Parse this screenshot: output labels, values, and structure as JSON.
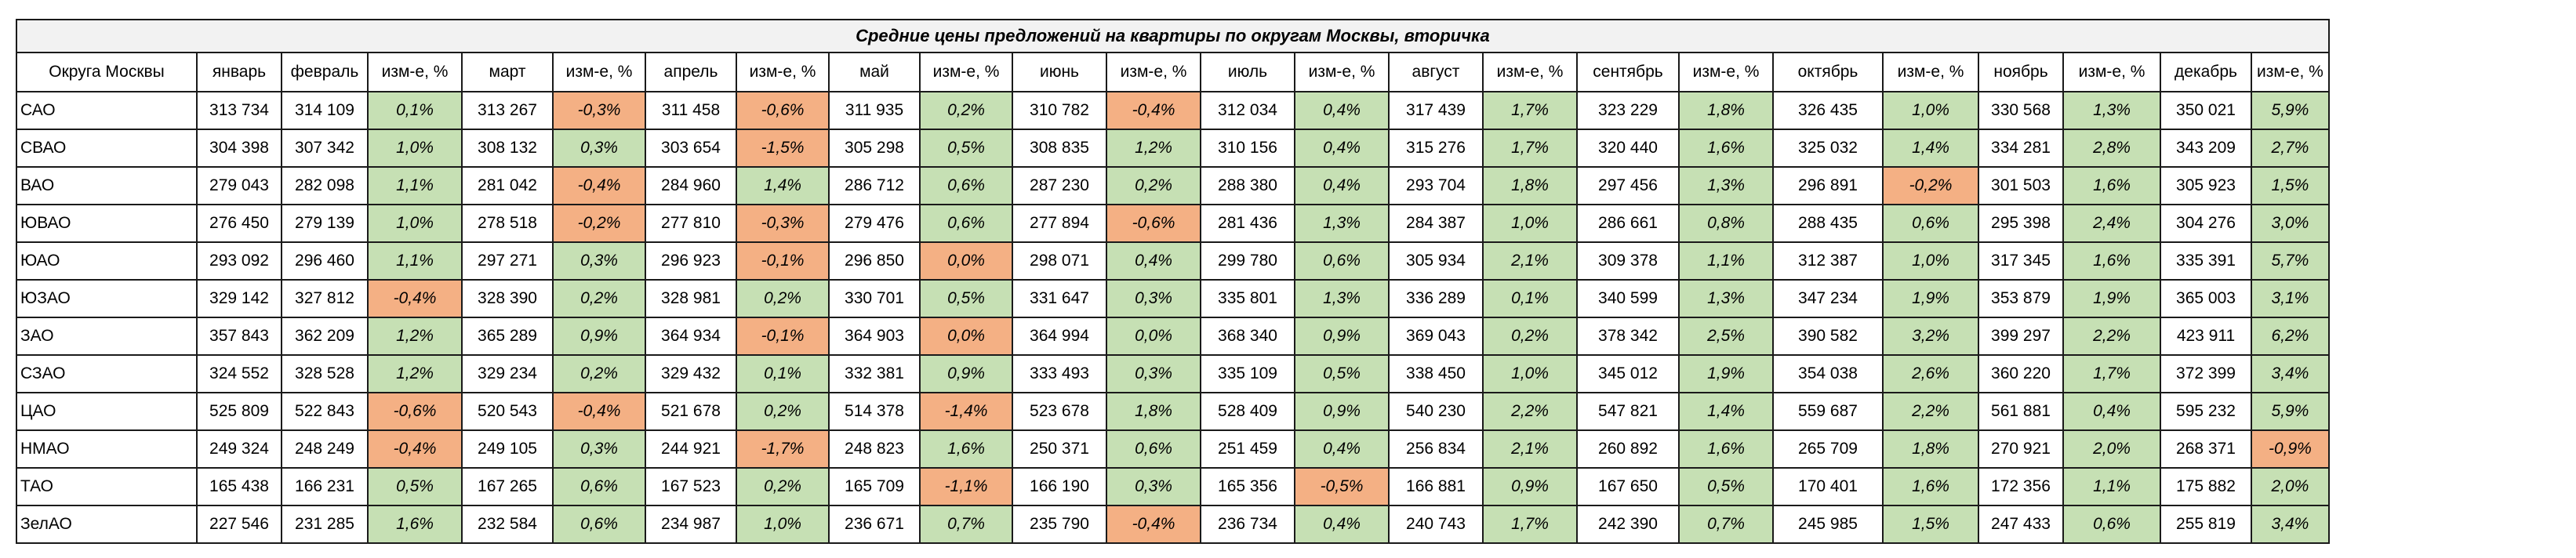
{
  "title": "Средние цены предложений на  квартиры по округам Москвы, вторичка",
  "columns": [
    "Округа Москвы",
    "январь",
    "февраль",
    "изм-е, %",
    "март",
    "изм-е, %",
    "апрель",
    "изм-е, %",
    "май",
    "изм-е, %",
    "июнь",
    "изм-е, %",
    "июль",
    "изм-е, %",
    "август",
    "изм-е, %",
    "сентябрь",
    "изм-е, %",
    "октябрь",
    "изм-е, %",
    "ноябрь",
    "изм-е, %",
    "декабрь",
    "изм-е, %"
  ],
  "colors": {
    "positive_fill": "#c6e0b4",
    "negative_fill": "#f4b084",
    "title_fill": "#f2f2f2",
    "border": "#1a1a1a"
  },
  "rows": [
    {
      "district": "САО",
      "jan": "313 734",
      "months": [
        {
          "price": "314 109",
          "change": "0,1%",
          "sign": "pos"
        },
        {
          "price": "313 267",
          "change": "-0,3%",
          "sign": "neg"
        },
        {
          "price": "311 458",
          "change": "-0,6%",
          "sign": "neg"
        },
        {
          "price": "311 935",
          "change": "0,2%",
          "sign": "pos"
        },
        {
          "price": "310 782",
          "change": "-0,4%",
          "sign": "neg"
        },
        {
          "price": "312 034",
          "change": "0,4%",
          "sign": "pos"
        },
        {
          "price": "317 439",
          "change": "1,7%",
          "sign": "pos"
        },
        {
          "price": "323 229",
          "change": "1,8%",
          "sign": "pos"
        },
        {
          "price": "326 435",
          "change": "1,0%",
          "sign": "pos"
        },
        {
          "price": "330 568",
          "change": "1,3%",
          "sign": "pos"
        },
        {
          "price": "350 021",
          "change": "5,9%",
          "sign": "pos"
        }
      ]
    },
    {
      "district": "СВАО",
      "jan": "304 398",
      "months": [
        {
          "price": "307 342",
          "change": "1,0%",
          "sign": "pos"
        },
        {
          "price": "308 132",
          "change": "0,3%",
          "sign": "pos"
        },
        {
          "price": "303 654",
          "change": "-1,5%",
          "sign": "neg"
        },
        {
          "price": "305 298",
          "change": "0,5%",
          "sign": "pos"
        },
        {
          "price": "308 835",
          "change": "1,2%",
          "sign": "pos"
        },
        {
          "price": "310 156",
          "change": "0,4%",
          "sign": "pos"
        },
        {
          "price": "315 276",
          "change": "1,7%",
          "sign": "pos"
        },
        {
          "price": "320 440",
          "change": "1,6%",
          "sign": "pos"
        },
        {
          "price": "325 032",
          "change": "1,4%",
          "sign": "pos"
        },
        {
          "price": "334 281",
          "change": "2,8%",
          "sign": "pos"
        },
        {
          "price": "343 209",
          "change": "2,7%",
          "sign": "pos"
        }
      ]
    },
    {
      "district": "ВАО",
      "jan": "279 043",
      "months": [
        {
          "price": "282 098",
          "change": "1,1%",
          "sign": "pos"
        },
        {
          "price": "281 042",
          "change": "-0,4%",
          "sign": "neg"
        },
        {
          "price": "284 960",
          "change": "1,4%",
          "sign": "pos"
        },
        {
          "price": "286 712",
          "change": "0,6%",
          "sign": "pos"
        },
        {
          "price": "287 230",
          "change": "0,2%",
          "sign": "pos"
        },
        {
          "price": "288 380",
          "change": "0,4%",
          "sign": "pos"
        },
        {
          "price": "293 704",
          "change": "1,8%",
          "sign": "pos"
        },
        {
          "price": "297 456",
          "change": "1,3%",
          "sign": "pos"
        },
        {
          "price": "296 891",
          "change": "-0,2%",
          "sign": "neg"
        },
        {
          "price": "301 503",
          "change": "1,6%",
          "sign": "pos"
        },
        {
          "price": "305 923",
          "change": "1,5%",
          "sign": "pos"
        }
      ]
    },
    {
      "district": "ЮВАО",
      "jan": "276 450",
      "months": [
        {
          "price": "279 139",
          "change": "1,0%",
          "sign": "pos"
        },
        {
          "price": "278 518",
          "change": "-0,2%",
          "sign": "neg"
        },
        {
          "price": "277 810",
          "change": "-0,3%",
          "sign": "neg"
        },
        {
          "price": "279 476",
          "change": "0,6%",
          "sign": "pos"
        },
        {
          "price": "277 894",
          "change": "-0,6%",
          "sign": "neg"
        },
        {
          "price": "281 436",
          "change": "1,3%",
          "sign": "pos"
        },
        {
          "price": "284 387",
          "change": "1,0%",
          "sign": "pos"
        },
        {
          "price": "286 661",
          "change": "0,8%",
          "sign": "pos"
        },
        {
          "price": "288 435",
          "change": "0,6%",
          "sign": "pos"
        },
        {
          "price": "295 398",
          "change": "2,4%",
          "sign": "pos"
        },
        {
          "price": "304 276",
          "change": "3,0%",
          "sign": "pos"
        }
      ]
    },
    {
      "district": "ЮАО",
      "jan": "293 092",
      "months": [
        {
          "price": "296 460",
          "change": "1,1%",
          "sign": "pos"
        },
        {
          "price": "297 271",
          "change": "0,3%",
          "sign": "pos"
        },
        {
          "price": "296 923",
          "change": "-0,1%",
          "sign": "neg"
        },
        {
          "price": "296 850",
          "change": "0,0%",
          "sign": "zero"
        },
        {
          "price": "298 071",
          "change": "0,4%",
          "sign": "pos"
        },
        {
          "price": "299 780",
          "change": "0,6%",
          "sign": "pos"
        },
        {
          "price": "305 934",
          "change": "2,1%",
          "sign": "pos"
        },
        {
          "price": "309 378",
          "change": "1,1%",
          "sign": "pos"
        },
        {
          "price": "312 387",
          "change": "1,0%",
          "sign": "pos"
        },
        {
          "price": "317 345",
          "change": "1,6%",
          "sign": "pos"
        },
        {
          "price": "335 391",
          "change": "5,7%",
          "sign": "pos"
        }
      ]
    },
    {
      "district": "ЮЗАО",
      "jan": "329 142",
      "months": [
        {
          "price": "327 812",
          "change": "-0,4%",
          "sign": "neg"
        },
        {
          "price": "328 390",
          "change": "0,2%",
          "sign": "pos"
        },
        {
          "price": "328 981",
          "change": "0,2%",
          "sign": "pos"
        },
        {
          "price": "330 701",
          "change": "0,5%",
          "sign": "pos"
        },
        {
          "price": "331 647",
          "change": "0,3%",
          "sign": "pos"
        },
        {
          "price": "335 801",
          "change": "1,3%",
          "sign": "pos"
        },
        {
          "price": "336 289",
          "change": "0,1%",
          "sign": "pos"
        },
        {
          "price": "340 599",
          "change": "1,3%",
          "sign": "pos"
        },
        {
          "price": "347 234",
          "change": "1,9%",
          "sign": "pos"
        },
        {
          "price": "353 879",
          "change": "1,9%",
          "sign": "pos"
        },
        {
          "price": "365 003",
          "change": "3,1%",
          "sign": "pos"
        }
      ]
    },
    {
      "district": "ЗАО",
      "jan": "357 843",
      "months": [
        {
          "price": "362 209",
          "change": "1,2%",
          "sign": "pos"
        },
        {
          "price": "365 289",
          "change": "0,9%",
          "sign": "pos"
        },
        {
          "price": "364 934",
          "change": "-0,1%",
          "sign": "neg"
        },
        {
          "price": "364 903",
          "change": "0,0%",
          "sign": "zero"
        },
        {
          "price": "364 994",
          "change": "0,0%",
          "sign": "pos"
        },
        {
          "price": "368 340",
          "change": "0,9%",
          "sign": "pos"
        },
        {
          "price": "369 043",
          "change": "0,2%",
          "sign": "pos"
        },
        {
          "price": "378 342",
          "change": "2,5%",
          "sign": "pos"
        },
        {
          "price": "390 582",
          "change": "3,2%",
          "sign": "pos"
        },
        {
          "price": "399 297",
          "change": "2,2%",
          "sign": "pos"
        },
        {
          "price": "423 911",
          "change": "6,2%",
          "sign": "pos"
        }
      ]
    },
    {
      "district": "СЗАО",
      "jan": "324 552",
      "months": [
        {
          "price": "328 528",
          "change": "1,2%",
          "sign": "pos"
        },
        {
          "price": "329 234",
          "change": "0,2%",
          "sign": "pos"
        },
        {
          "price": "329 432",
          "change": "0,1%",
          "sign": "pos"
        },
        {
          "price": "332 381",
          "change": "0,9%",
          "sign": "pos"
        },
        {
          "price": "333 493",
          "change": "0,3%",
          "sign": "pos"
        },
        {
          "price": "335 109",
          "change": "0,5%",
          "sign": "pos"
        },
        {
          "price": "338 450",
          "change": "1,0%",
          "sign": "pos"
        },
        {
          "price": "345 012",
          "change": "1,9%",
          "sign": "pos"
        },
        {
          "price": "354 038",
          "change": "2,6%",
          "sign": "pos"
        },
        {
          "price": "360 220",
          "change": "1,7%",
          "sign": "pos"
        },
        {
          "price": "372 399",
          "change": "3,4%",
          "sign": "pos"
        }
      ]
    },
    {
      "district": "ЦАО",
      "jan": "525 809",
      "months": [
        {
          "price": "522 843",
          "change": "-0,6%",
          "sign": "neg"
        },
        {
          "price": "520 543",
          "change": "-0,4%",
          "sign": "neg"
        },
        {
          "price": "521 678",
          "change": "0,2%",
          "sign": "pos"
        },
        {
          "price": "514 378",
          "change": "-1,4%",
          "sign": "neg"
        },
        {
          "price": "523 678",
          "change": "1,8%",
          "sign": "pos"
        },
        {
          "price": "528 409",
          "change": "0,9%",
          "sign": "pos"
        },
        {
          "price": "540 230",
          "change": "2,2%",
          "sign": "pos"
        },
        {
          "price": "547 821",
          "change": "1,4%",
          "sign": "pos"
        },
        {
          "price": "559 687",
          "change": "2,2%",
          "sign": "pos"
        },
        {
          "price": "561 881",
          "change": "0,4%",
          "sign": "pos"
        },
        {
          "price": "595 232",
          "change": "5,9%",
          "sign": "pos"
        }
      ]
    },
    {
      "district": "НМАО",
      "jan": "249 324",
      "months": [
        {
          "price": "248 249",
          "change": "-0,4%",
          "sign": "neg"
        },
        {
          "price": "249 105",
          "change": "0,3%",
          "sign": "pos"
        },
        {
          "price": "244 921",
          "change": "-1,7%",
          "sign": "neg"
        },
        {
          "price": "248 823",
          "change": "1,6%",
          "sign": "pos"
        },
        {
          "price": "250 371",
          "change": "0,6%",
          "sign": "pos"
        },
        {
          "price": "251 459",
          "change": "0,4%",
          "sign": "pos"
        },
        {
          "price": "256 834",
          "change": "2,1%",
          "sign": "pos"
        },
        {
          "price": "260 892",
          "change": "1,6%",
          "sign": "pos"
        },
        {
          "price": "265 709",
          "change": "1,8%",
          "sign": "pos"
        },
        {
          "price": "270 921",
          "change": "2,0%",
          "sign": "pos"
        },
        {
          "price": "268 371",
          "change": "-0,9%",
          "sign": "neg"
        }
      ]
    },
    {
      "district": "ТАО",
      "jan": "165 438",
      "months": [
        {
          "price": "166 231",
          "change": "0,5%",
          "sign": "pos"
        },
        {
          "price": "167 265",
          "change": "0,6%",
          "sign": "pos"
        },
        {
          "price": "167 523",
          "change": "0,2%",
          "sign": "pos"
        },
        {
          "price": "165 709",
          "change": "-1,1%",
          "sign": "neg"
        },
        {
          "price": "166 190",
          "change": "0,3%",
          "sign": "pos"
        },
        {
          "price": "165 356",
          "change": "-0,5%",
          "sign": "neg"
        },
        {
          "price": "166 881",
          "change": "0,9%",
          "sign": "pos"
        },
        {
          "price": "167 650",
          "change": "0,5%",
          "sign": "pos"
        },
        {
          "price": "170 401",
          "change": "1,6%",
          "sign": "pos"
        },
        {
          "price": "172 356",
          "change": "1,1%",
          "sign": "pos"
        },
        {
          "price": "175 882",
          "change": "2,0%",
          "sign": "pos"
        }
      ]
    },
    {
      "district": "ЗелАО",
      "jan": "227 546",
      "months": [
        {
          "price": "231 285",
          "change": "1,6%",
          "sign": "pos"
        },
        {
          "price": "232 584",
          "change": "0,6%",
          "sign": "pos"
        },
        {
          "price": "234 987",
          "change": "1,0%",
          "sign": "pos"
        },
        {
          "price": "236 671",
          "change": "0,7%",
          "sign": "pos"
        },
        {
          "price": "235 790",
          "change": "-0,4%",
          "sign": "neg"
        },
        {
          "price": "236 734",
          "change": "0,4%",
          "sign": "pos"
        },
        {
          "price": "240 743",
          "change": "1,7%",
          "sign": "pos"
        },
        {
          "price": "242 390",
          "change": "0,7%",
          "sign": "pos"
        },
        {
          "price": "245 985",
          "change": "1,5%",
          "sign": "pos"
        },
        {
          "price": "247 433",
          "change": "0,6%",
          "sign": "pos"
        },
        {
          "price": "255 819",
          "change": "3,4%",
          "sign": "pos"
        }
      ]
    }
  ]
}
